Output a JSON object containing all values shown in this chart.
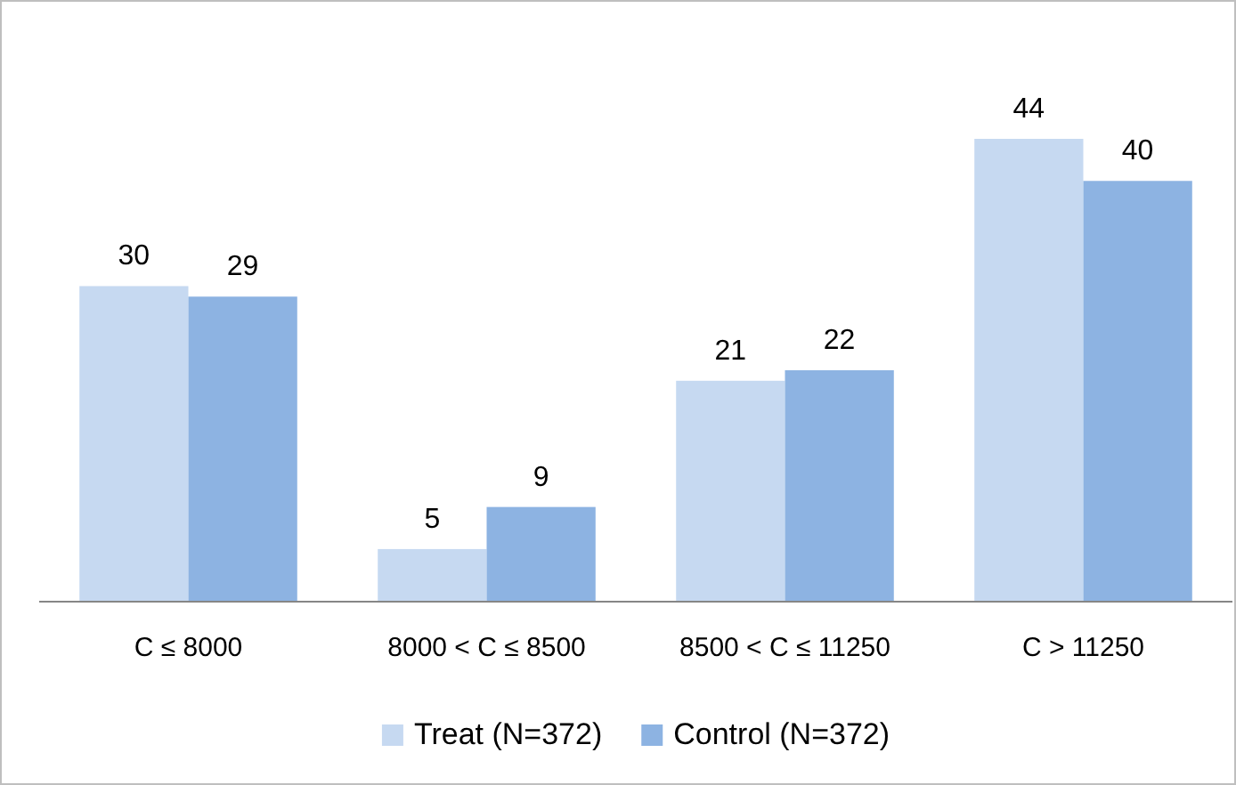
{
  "chart_data": {
    "type": "bar",
    "categories": [
      "C ≤ 8000",
      "8000 < C ≤ 8500",
      "8500 < C ≤ 11250",
      "C > 11250"
    ],
    "series": [
      {
        "name": "Treat (N=372)",
        "color": "#c6d9f1",
        "values": [
          30,
          5,
          21,
          44
        ]
      },
      {
        "name": "Control (N=372)",
        "color": "#8db3e2",
        "values": [
          29,
          9,
          22,
          40
        ]
      }
    ],
    "data_labels": true,
    "legend": "bottom",
    "grid": false
  }
}
